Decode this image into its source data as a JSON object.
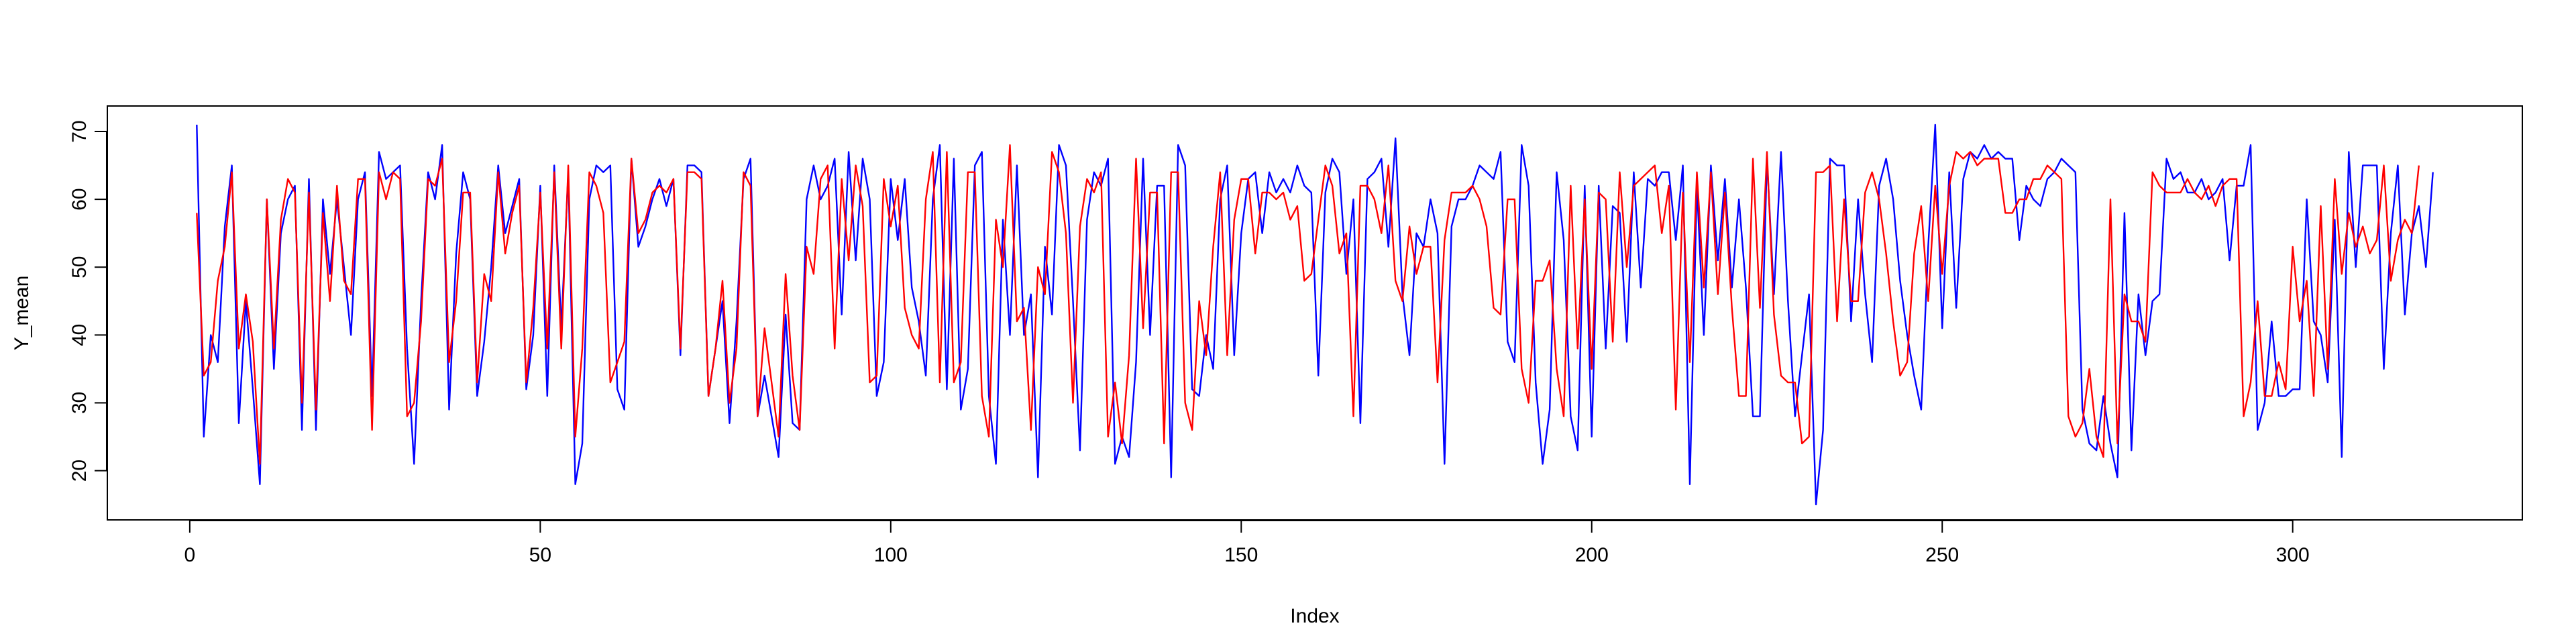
{
  "chart_data": {
    "type": "line",
    "title": "",
    "xlabel": "Index",
    "ylabel": "Y_mean",
    "xlim": [
      1,
      320
    ],
    "ylim": [
      15.0,
      71.5
    ],
    "grid": false,
    "legend": "none",
    "x_ticks": [
      0,
      50,
      100,
      150,
      200,
      250,
      300
    ],
    "y_ticks": [
      20,
      30,
      40,
      50,
      60,
      70
    ],
    "x_tick_labels": [
      "0",
      "50",
      "100",
      "150",
      "200",
      "250",
      "300"
    ],
    "y_tick_labels": [
      "20",
      "30",
      "40",
      "50",
      "60",
      "70"
    ],
    "series": [
      {
        "color": "#0000ff",
        "values": [
          71,
          25,
          40,
          36,
          56,
          65,
          27,
          45,
          32,
          18,
          60,
          35,
          55,
          60,
          62,
          26,
          63,
          26,
          60,
          49,
          60,
          50,
          40,
          60,
          64,
          31,
          67,
          63,
          64,
          65,
          38,
          21,
          45,
          64,
          60,
          68,
          29,
          52,
          64,
          60,
          31,
          39,
          50,
          65,
          55,
          59,
          63,
          32,
          40,
          62,
          31,
          65,
          41,
          64,
          18,
          24,
          60,
          65,
          64,
          65,
          32,
          29,
          66,
          53,
          56,
          60,
          63,
          59,
          63,
          37,
          65,
          65,
          64,
          31,
          38,
          45,
          27,
          42,
          63,
          66,
          28,
          34,
          28,
          22,
          43,
          27,
          26,
          60,
          65,
          60,
          62,
          66,
          43,
          67,
          51,
          66,
          60,
          31,
          36,
          63,
          54,
          63,
          47,
          42,
          34,
          60,
          68,
          32,
          66,
          29,
          35,
          65,
          67,
          31,
          21,
          57,
          40,
          65,
          40,
          46,
          19,
          53,
          43,
          68,
          65,
          45,
          23,
          57,
          64,
          62,
          66,
          21,
          25,
          22,
          36,
          66,
          40,
          62,
          62,
          19,
          68,
          65,
          32,
          31,
          40,
          35,
          60,
          65,
          37,
          55,
          63,
          64,
          55,
          64,
          61,
          63,
          61,
          65,
          62,
          61,
          34,
          61,
          66,
          64,
          49,
          60,
          27,
          63,
          64,
          66,
          53,
          69,
          46,
          37,
          55,
          53,
          60,
          55,
          21,
          56,
          60,
          60,
          62,
          65,
          64,
          63,
          67,
          39,
          36,
          68,
          62,
          33,
          21,
          29,
          64,
          54,
          28,
          23,
          62,
          25,
          62,
          38,
          59,
          58,
          39,
          64,
          47,
          63,
          62,
          64,
          64,
          54,
          65,
          18,
          62,
          40,
          65,
          51,
          63,
          47,
          60,
          47,
          28,
          28,
          66,
          46,
          67,
          45,
          28,
          37,
          46,
          15,
          26,
          66,
          65,
          65,
          42,
          60,
          46,
          36,
          62,
          66,
          60,
          48,
          40,
          34,
          29,
          53,
          71,
          41,
          64,
          44,
          63,
          67,
          66,
          68,
          66,
          67,
          66,
          66,
          54,
          62,
          60,
          59,
          63,
          64,
          66,
          65,
          64,
          29,
          24,
          23,
          31,
          24,
          19,
          58,
          23,
          46,
          37,
          45,
          46,
          66,
          63,
          64,
          61,
          61,
          63,
          60,
          61,
          63,
          51,
          62,
          62,
          68,
          26,
          30,
          42,
          31,
          31,
          32,
          32,
          60,
          42,
          40,
          33,
          57,
          22,
          67,
          50,
          65,
          65,
          65,
          35,
          55,
          65,
          43,
          55,
          59,
          50,
          64
        ],
        "name": ""
      },
      {
        "color": "#ff0000",
        "values": [
          58,
          34,
          36,
          48,
          53,
          64,
          38,
          46,
          39,
          21,
          60,
          38,
          57,
          63,
          61,
          30,
          61,
          29,
          58,
          45,
          62,
          48,
          46,
          63,
          63,
          26,
          64,
          60,
          64,
          63,
          28,
          30,
          42,
          63,
          62,
          66,
          36,
          45,
          61,
          61,
          33,
          49,
          45,
          64,
          52,
          58,
          62,
          33,
          44,
          61,
          38,
          64,
          38,
          65,
          25,
          38,
          64,
          62,
          58,
          33,
          36,
          39,
          66,
          55,
          57,
          61,
          62,
          61,
          63,
          38,
          64,
          64,
          63,
          31,
          38,
          48,
          30,
          38,
          64,
          62,
          28,
          41,
          33,
          25,
          49,
          34,
          26,
          53,
          49,
          63,
          65,
          38,
          63,
          51,
          65,
          59,
          33,
          34,
          63,
          56,
          62,
          44,
          40,
          38,
          60,
          67,
          33,
          67,
          33,
          36,
          64,
          64,
          31,
          25,
          57,
          50,
          68,
          42,
          44,
          26,
          50,
          46,
          67,
          64,
          55,
          30,
          56,
          63,
          61,
          64,
          25,
          33,
          24,
          37,
          66,
          41,
          61,
          61,
          24,
          64,
          64,
          30,
          26,
          45,
          37,
          53,
          64,
          37,
          57,
          63,
          63,
          52,
          61,
          61,
          60,
          61,
          57,
          59,
          48,
          49,
          57,
          65,
          62,
          52,
          55,
          28,
          62,
          62,
          60,
          55,
          65,
          48,
          45,
          56,
          49,
          53,
          53,
          33,
          54,
          61,
          61,
          61,
          62,
          60,
          56,
          44,
          43,
          60,
          60,
          35,
          30,
          48,
          48,
          51,
          35,
          28,
          62,
          38,
          60,
          35,
          61,
          60,
          39,
          64,
          50,
          62,
          63,
          64,
          65,
          55,
          62,
          29,
          61,
          36,
          64,
          47,
          64,
          46,
          61,
          44,
          31,
          31,
          66,
          44,
          67,
          43,
          34,
          33,
          33,
          24,
          25,
          64,
          64,
          65,
          42,
          60,
          45,
          45,
          61,
          64,
          60,
          52,
          42,
          34,
          36,
          52,
          59,
          45,
          62,
          49,
          62,
          67,
          66,
          67,
          65,
          66,
          66,
          66,
          58,
          58,
          60,
          60,
          63,
          63,
          65,
          64,
          63,
          28,
          25,
          27,
          35,
          25,
          22,
          60,
          24,
          46,
          42,
          42,
          39,
          64,
          62,
          61,
          61,
          61,
          63,
          61,
          60,
          62,
          59,
          62,
          63,
          63,
          28,
          33,
          45,
          31,
          31,
          36,
          32,
          53,
          42,
          48,
          31,
          59,
          35,
          63,
          49,
          58,
          53,
          56,
          52,
          54,
          65,
          48,
          54,
          57,
          55,
          65
        ],
        "name": ""
      }
    ]
  }
}
